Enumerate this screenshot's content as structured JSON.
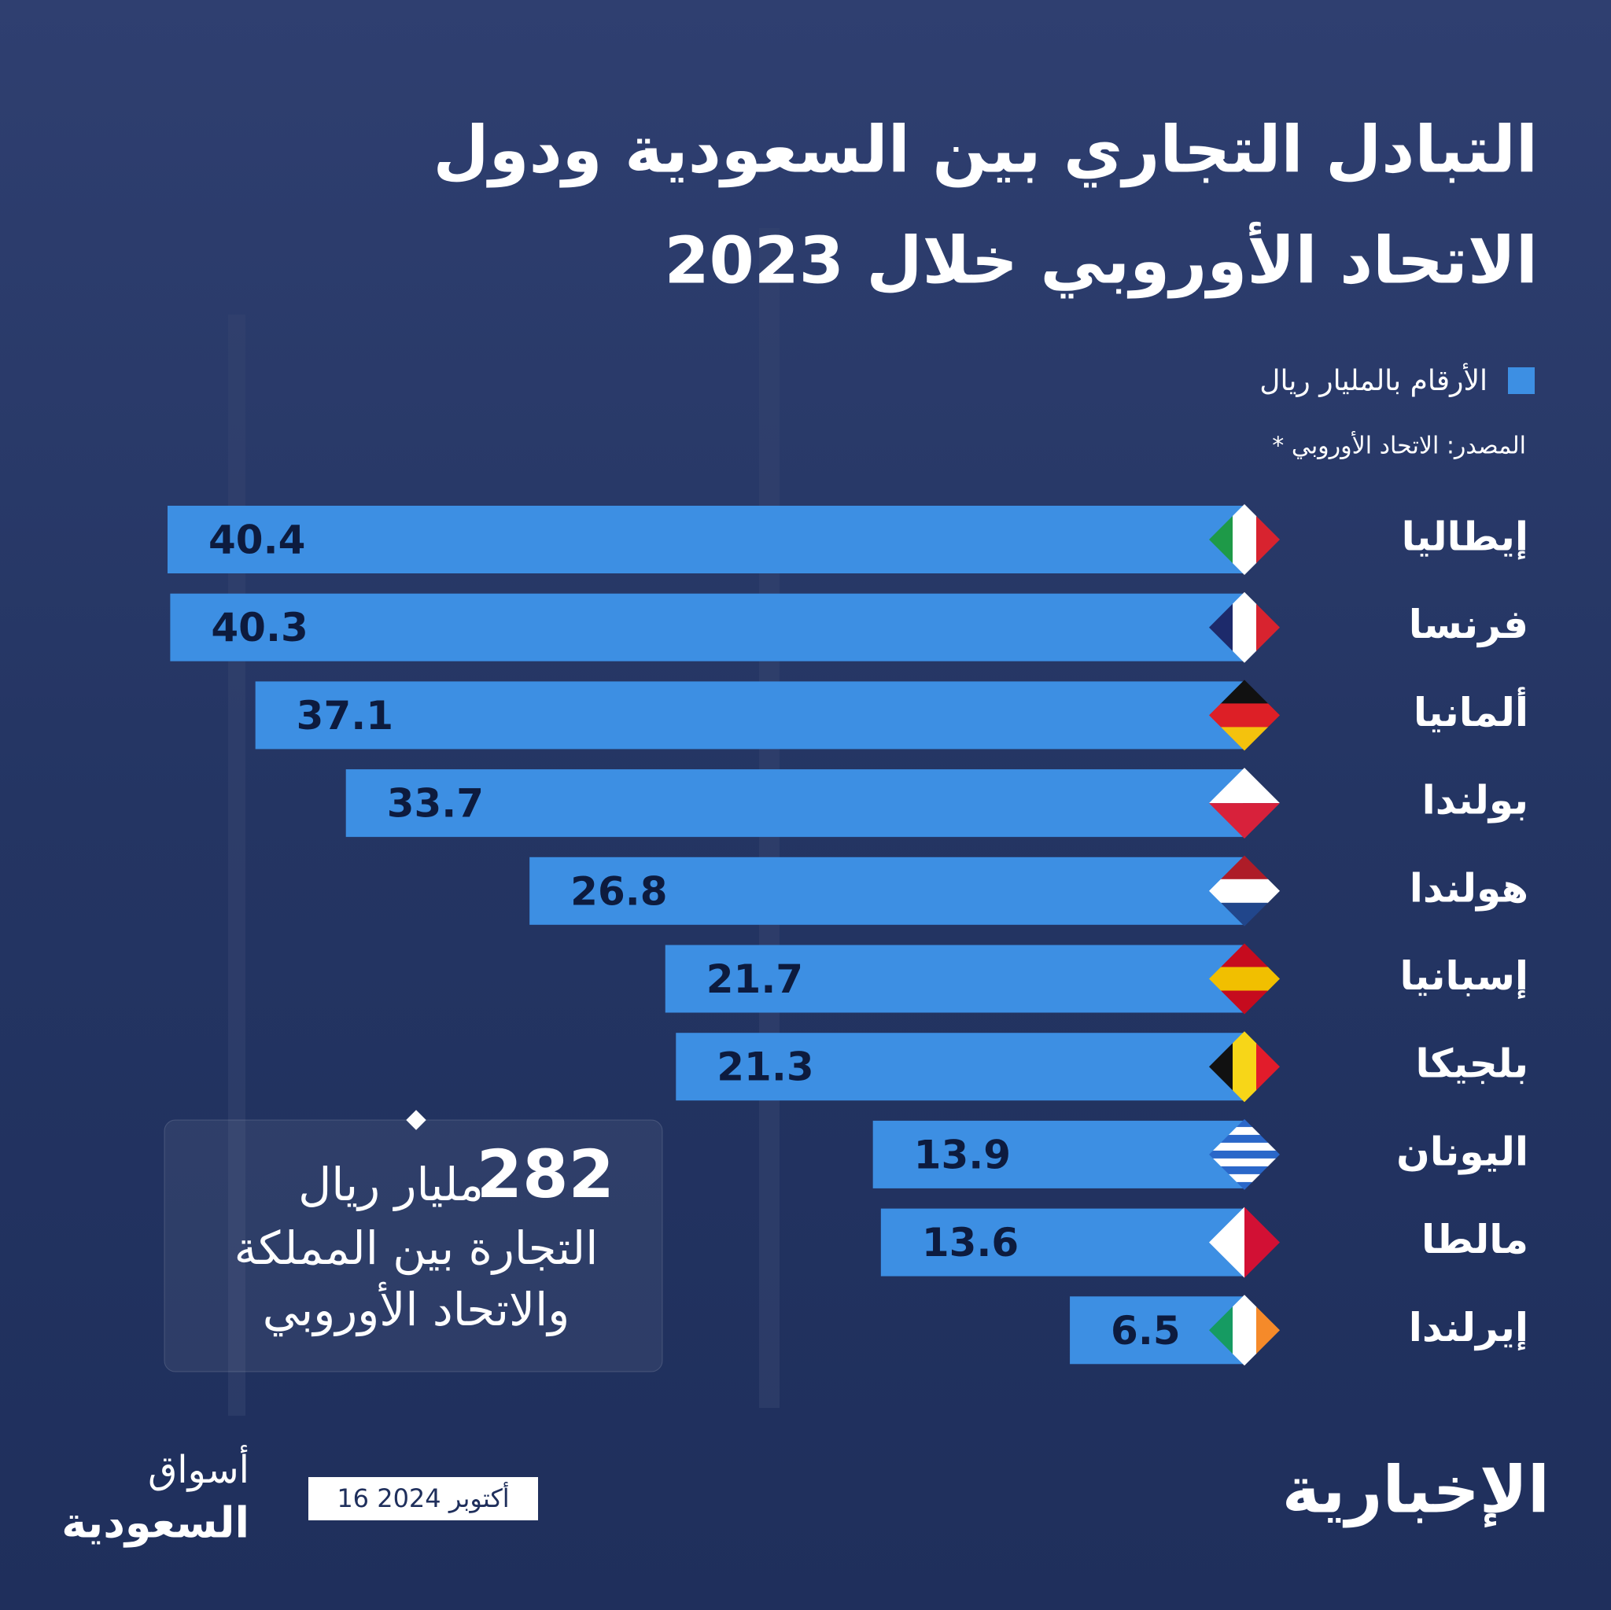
{
  "chart_data": {
    "type": "bar",
    "title": [
      "التبادل التجاري بين السعودية ودول",
      "الاتحاد الأوروبي خلال 2023"
    ],
    "legend": "الأرقام بالمليار ريال",
    "source": "* المصدر: الاتحاد الأوروبي",
    "color": "#3d8fe3",
    "categories": [
      "إيطاليا",
      "فرنسا",
      "ألمانيا",
      "بولندا",
      "هولندا",
      "إسبانيا",
      "بلجيكا",
      "اليونان",
      "مالطا",
      "إيرلندا"
    ],
    "values": [
      40.4,
      40.3,
      37.1,
      33.7,
      26.8,
      21.7,
      21.3,
      13.9,
      13.6,
      6.5
    ],
    "total": {
      "value": "282",
      "unit": "مليار ريال",
      "lines": [
        "التجارة بين المملكة",
        "والاتحاد الأوروبي"
      ]
    },
    "footer": {
      "date": "16 أكتوبر 2024",
      "brand": "الإخبارية",
      "logo": [
        "أسواق",
        "السعودية"
      ]
    }
  }
}
